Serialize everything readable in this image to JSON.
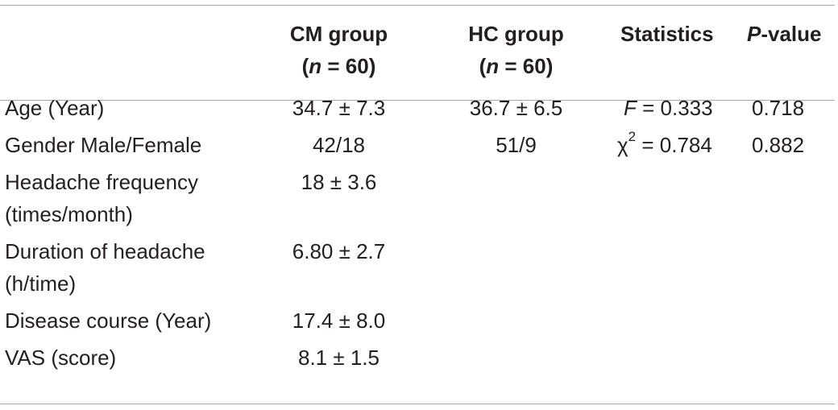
{
  "table": {
    "headers": {
      "col1_line1": "CM group",
      "col1_line2_var": "n",
      "col1_line2_rest": " = 60)",
      "col2_line1": "HC group",
      "col2_line2_var": "n",
      "col2_line2_rest": " = 60)",
      "col3": "Statistics",
      "col4_var": "P",
      "col4_rest": "-value"
    },
    "rows": [
      {
        "label": "Age (Year)",
        "cm": "34.7 ± 7.3",
        "hc": "36.7 ± 6.5",
        "stat_var": "F",
        "stat_rest": " = 0.333",
        "p": "0.718"
      },
      {
        "label": "Gender Male/Female",
        "cm": "42/18",
        "hc": "51/9",
        "stat_var": "χ",
        "stat_sup": "2",
        "stat_rest": " = 0.784",
        "p": "0.882"
      },
      {
        "label_line1": "Headache frequency",
        "label_line2": "(times/month)",
        "cm": "18 ± 3.6"
      },
      {
        "label_line1": "Duration of headache",
        "label_line2": "(h/time)",
        "cm": "6.80 ± 2.7"
      },
      {
        "label": "Disease course (Year)",
        "cm": "17.4 ± 8.0"
      },
      {
        "label": "VAS (score)",
        "cm": "8.1 ± 1.5"
      }
    ]
  }
}
